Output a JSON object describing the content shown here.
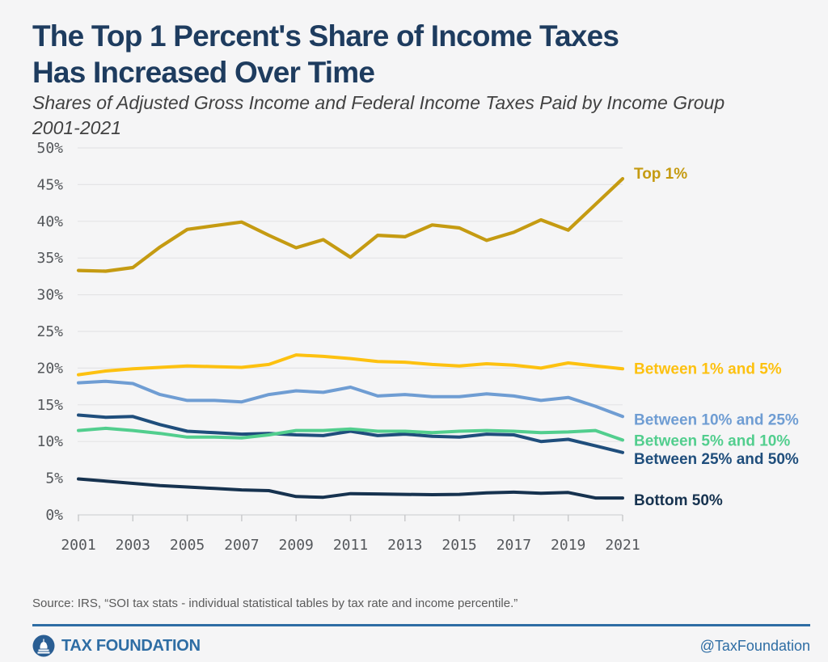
{
  "page": {
    "background": "#F5F5F6",
    "accent_blue": "#2E6DA4"
  },
  "header": {
    "title_line1": "The Top 1 Percent's Share of Income Taxes",
    "title_line2": "Has Increased Over Time",
    "subtitle_line1": "Shares of Adjusted Gross Income and Federal Income Taxes Paid by Income Group",
    "subtitle_line2": "2001-2021",
    "title_color": "#1E3C5F"
  },
  "chart_data": {
    "type": "line",
    "x": [
      2001,
      2002,
      2003,
      2004,
      2005,
      2006,
      2007,
      2008,
      2009,
      2010,
      2011,
      2012,
      2013,
      2014,
      2015,
      2016,
      2017,
      2018,
      2019,
      2020,
      2021
    ],
    "x_tick_labels": [
      "2001",
      "2003",
      "2005",
      "2007",
      "2009",
      "2011",
      "2013",
      "2015",
      "2017",
      "2019",
      "2021"
    ],
    "y_ticks": [
      0,
      5,
      10,
      15,
      20,
      25,
      30,
      35,
      40,
      45,
      50
    ],
    "y_tick_suffix": "%",
    "ylim": [
      0,
      50
    ],
    "grid": true,
    "legend_position": "right-of-line-ends",
    "series": [
      {
        "name": "Between 10% and 25%",
        "color": "#6F9DD3",
        "values": [
          18.0,
          18.2,
          17.9,
          16.4,
          15.6,
          15.6,
          15.4,
          16.4,
          16.9,
          16.7,
          17.4,
          16.2,
          16.4,
          16.1,
          16.1,
          16.5,
          16.2,
          15.6,
          16.0,
          14.8,
          13.4
        ]
      },
      {
        "name": "Between 1% and 5%",
        "color": "#FDC110",
        "values": [
          19.1,
          19.6,
          19.9,
          20.1,
          20.3,
          20.2,
          20.1,
          20.5,
          21.8,
          21.6,
          21.3,
          20.9,
          20.8,
          20.5,
          20.3,
          20.6,
          20.4,
          20.0,
          20.7,
          20.3,
          19.9
        ]
      },
      {
        "name": "Between 25% and 50%",
        "color": "#1F4E7C",
        "values": [
          13.6,
          13.3,
          13.4,
          12.3,
          11.4,
          11.2,
          11.0,
          11.1,
          10.9,
          10.8,
          11.4,
          10.8,
          11.0,
          10.7,
          10.6,
          11.0,
          10.9,
          10.0,
          10.3,
          9.4,
          8.5
        ]
      },
      {
        "name": "Between 5% and 10%",
        "color": "#52CE8E",
        "values": [
          11.5,
          11.8,
          11.5,
          11.1,
          10.6,
          10.6,
          10.5,
          10.9,
          11.5,
          11.5,
          11.7,
          11.4,
          11.4,
          11.2,
          11.4,
          11.5,
          11.4,
          11.2,
          11.3,
          11.5,
          10.2
        ]
      },
      {
        "name": "Bottom 50%",
        "color": "#16324F",
        "values": [
          4.9,
          4.6,
          4.3,
          4.0,
          3.8,
          3.6,
          3.4,
          3.3,
          2.5,
          2.4,
          2.9,
          2.85,
          2.8,
          2.75,
          2.8,
          3.0,
          3.1,
          2.95,
          3.05,
          2.3,
          2.3
        ]
      },
      {
        "name": "Top 1%",
        "color": "#C59B12",
        "values": [
          33.3,
          33.2,
          33.7,
          36.5,
          38.9,
          39.4,
          39.9,
          38.1,
          36.4,
          37.5,
          35.1,
          38.1,
          37.9,
          39.5,
          39.1,
          37.4,
          38.5,
          40.2,
          38.8,
          42.3,
          45.8
        ]
      }
    ]
  },
  "footer": {
    "source": "Source: IRS, “SOI tax stats - individual statistical tables by tax rate and income percentile.”",
    "brand": "TAX FOUNDATION",
    "handle": "@TaxFoundation"
  }
}
